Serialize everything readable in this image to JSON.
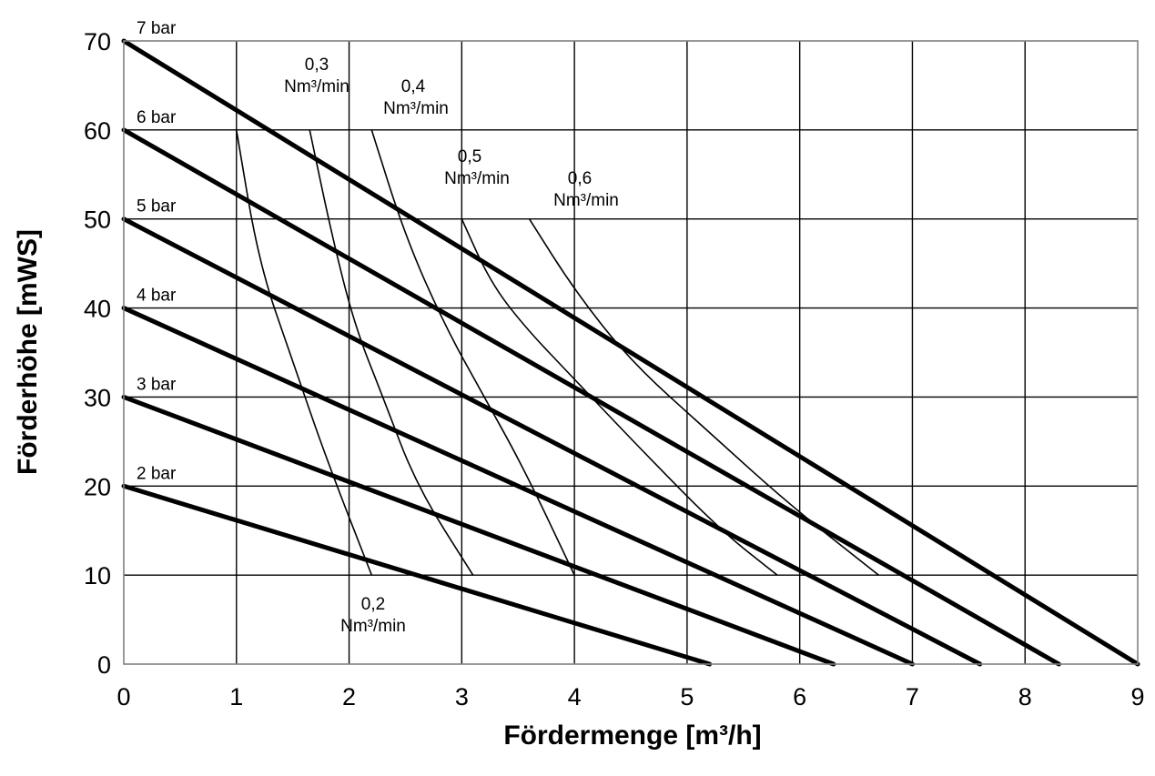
{
  "chart_data": {
    "type": "line",
    "title": "",
    "xlabel": "Fördermenge [m³/h]",
    "ylabel": "Förderhöhe [mWS]",
    "xlim": [
      0,
      9
    ],
    "ylim": [
      0,
      70
    ],
    "x_ticks": [
      "0",
      "1",
      "2",
      "3",
      "4",
      "5",
      "6",
      "7",
      "8",
      "9"
    ],
    "y_ticks": [
      "0",
      "10",
      "20",
      "30",
      "40",
      "50",
      "60",
      "70"
    ],
    "grid": true,
    "series": [
      {
        "name": "7 bar",
        "points": [
          [
            0,
            70
          ],
          [
            9,
            0
          ]
        ]
      },
      {
        "name": "6 bar",
        "points": [
          [
            0,
            60
          ],
          [
            8.3,
            0
          ]
        ]
      },
      {
        "name": "5 bar",
        "points": [
          [
            0,
            50
          ],
          [
            7.6,
            0
          ]
        ]
      },
      {
        "name": "4 bar",
        "points": [
          [
            0,
            40
          ],
          [
            7.0,
            0
          ]
        ]
      },
      {
        "name": "3 bar",
        "points": [
          [
            0,
            30
          ],
          [
            6.3,
            0
          ]
        ]
      },
      {
        "name": "2 bar",
        "points": [
          [
            0,
            20
          ],
          [
            5.2,
            0
          ]
        ]
      }
    ],
    "air_consumption_curves": [
      {
        "label_value": "0,2",
        "label_unit": "Nm³/min",
        "points": [
          [
            1.0,
            60
          ],
          [
            1.2,
            45
          ],
          [
            1.5,
            34
          ],
          [
            1.8,
            23
          ],
          [
            2.2,
            10
          ]
        ]
      },
      {
        "label_value": "0,3",
        "label_unit": "Nm³/min",
        "points": [
          [
            1.65,
            60
          ],
          [
            1.85,
            48
          ],
          [
            2.05,
            38
          ],
          [
            2.3,
            30
          ],
          [
            2.6,
            20
          ],
          [
            3.1,
            10
          ]
        ]
      },
      {
        "label_value": "0,4",
        "label_unit": "Nm³/min",
        "points": [
          [
            2.2,
            60
          ],
          [
            2.5,
            48
          ],
          [
            2.85,
            38
          ],
          [
            3.2,
            30
          ],
          [
            3.55,
            22
          ],
          [
            4.0,
            10
          ]
        ]
      },
      {
        "label_value": "0,5",
        "label_unit": "Nm³/min",
        "points": [
          [
            3.0,
            50
          ],
          [
            3.25,
            43
          ],
          [
            3.55,
            38
          ],
          [
            4.0,
            32
          ],
          [
            4.6,
            24
          ],
          [
            5.3,
            15
          ],
          [
            5.8,
            10
          ]
        ]
      },
      {
        "label_value": "0,6",
        "label_unit": "Nm³/min",
        "points": [
          [
            3.6,
            50
          ],
          [
            4.0,
            42
          ],
          [
            4.5,
            34
          ],
          [
            5.2,
            26
          ],
          [
            5.9,
            18
          ],
          [
            6.7,
            10
          ]
        ]
      }
    ],
    "annotations": {
      "flow_0_2": {
        "value": "0,2",
        "unit": "Nm³/min"
      },
      "flow_0_3": {
        "value": "0,3",
        "unit": "Nm³/min"
      },
      "flow_0_4": {
        "value": "0,4",
        "unit": "Nm³/min"
      },
      "flow_0_5": {
        "value": "0,5",
        "unit": "Nm³/min"
      },
      "flow_0_6": {
        "value": "0,6",
        "unit": "Nm³/min"
      }
    }
  }
}
